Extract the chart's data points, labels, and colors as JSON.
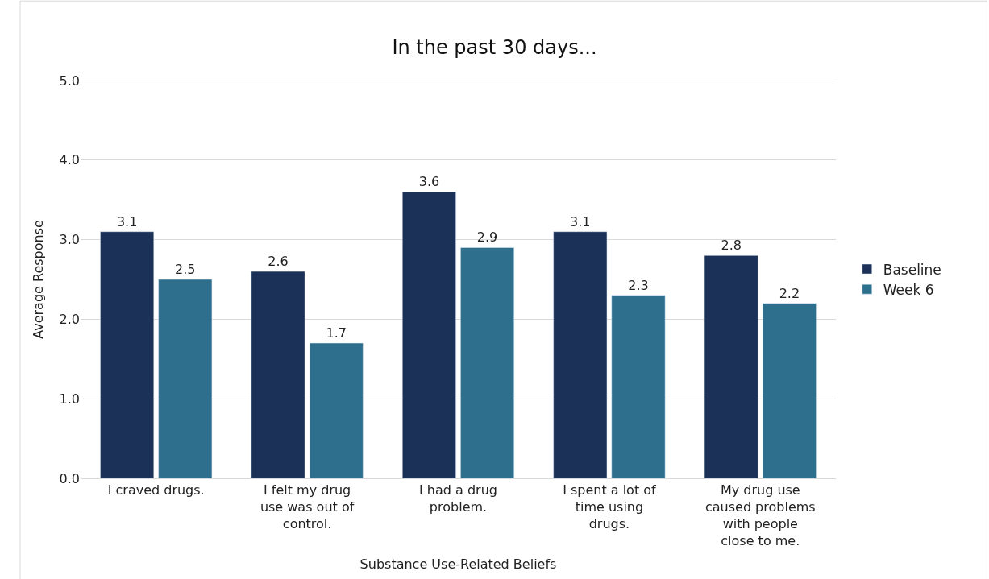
{
  "chart_data": {
    "type": "bar",
    "title": "In the past 30 days...",
    "xlabel": "Substance Use-Related Beliefs",
    "ylabel": "Average Response",
    "categories": [
      "I craved drugs.",
      "I felt my drug use was out of control.",
      "I had a drug problem.",
      "I spent a lot of time using drugs.",
      "My drug use caused problems with people close to me."
    ],
    "series": [
      {
        "name": "Baseline",
        "color": "#1b3157",
        "values": [
          3.1,
          2.6,
          3.6,
          3.1,
          2.8
        ]
      },
      {
        "name": "Week 6",
        "color": "#2e6f8e",
        "values": [
          2.5,
          1.7,
          2.9,
          2.3,
          2.2
        ]
      }
    ],
    "ylim": [
      0,
      5
    ],
    "yticks": [
      "0.0",
      "1.0",
      "2.0",
      "3.0",
      "4.0",
      "5.0"
    ],
    "grid": "y",
    "legend": "right",
    "data_labels": true
  }
}
